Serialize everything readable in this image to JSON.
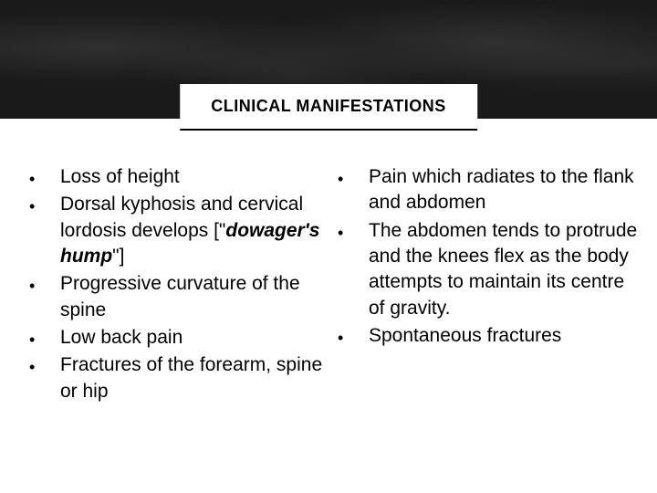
{
  "header": {
    "title": "CLINICAL MANIFESTATIONS"
  },
  "leftColumn": {
    "items": [
      {
        "html": "Loss of height"
      },
      {
        "html": "Dorsal kyphosis and cervical lordosis develops [\"<span class='italic-bold'>dowager's hump</span>\"]"
      },
      {
        "html": "Progressive curvature of the spine"
      },
      {
        "html": "Low back pain"
      },
      {
        "html": "Fractures of the forearm, spine or hip"
      }
    ]
  },
  "rightColumn": {
    "items": [
      {
        "html": "Pain which radiates to the flank and abdomen"
      },
      {
        "html": "The abdomen tends to protrude and the knees flex as the body attempts to maintain its centre of gravity."
      },
      {
        "html": "Spontaneous fractures"
      }
    ]
  },
  "style": {
    "bullet_char": "•",
    "bullet_color": "#000000",
    "text_color": "#000000",
    "title_bg": "#ffffff",
    "header_bg": "#1a1a1a",
    "body_bg": "#ffffff",
    "font_size_body": 21,
    "font_size_title": 18
  }
}
